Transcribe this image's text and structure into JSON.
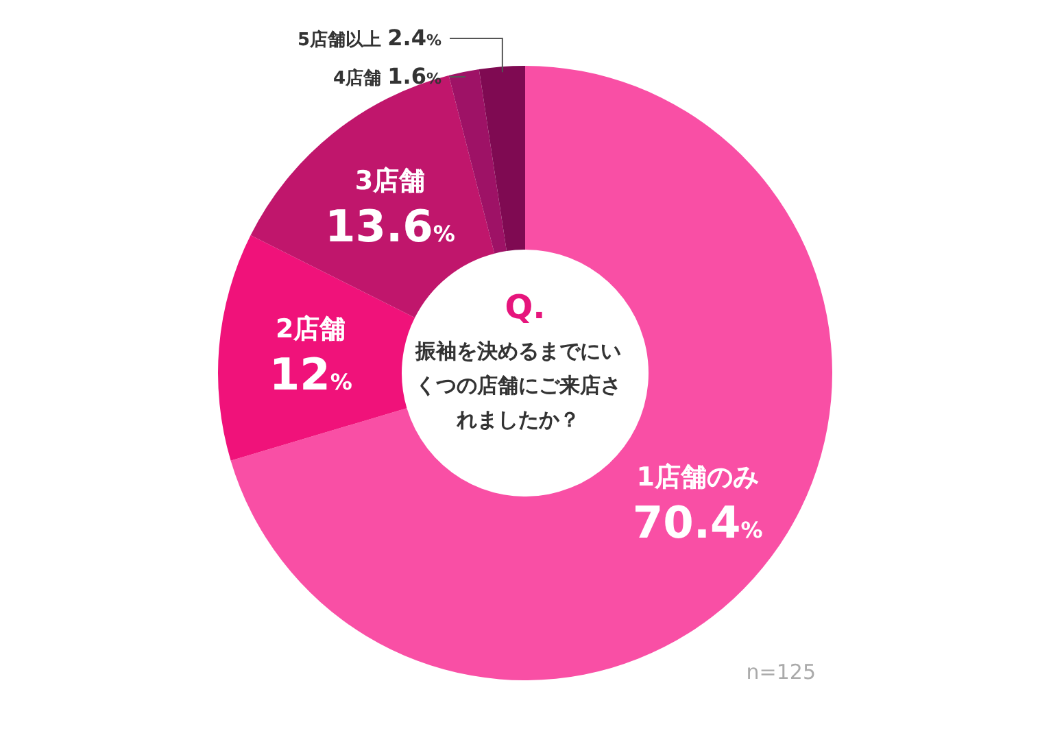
{
  "chart_data": {
    "type": "donut",
    "title": "Q.",
    "subtitle": "振袖を決めるまでにいくつの店舗にご来店されましたか？",
    "categories": [
      "1店舗のみ",
      "2店舗",
      "3店舗",
      "4店舗",
      "5店舗以上"
    ],
    "values": [
      70.4,
      12,
      13.6,
      1.6,
      2.4
    ],
    "colors": [
      "#f94fa5",
      "#f0127a",
      "#c0166c",
      "#9e1266",
      "#7f0a52"
    ],
    "value_labels": [
      "70.4%",
      "12%",
      "13.6%",
      "1.6%",
      "2.4%"
    ],
    "annotations": [
      "n=125"
    ]
  }
}
